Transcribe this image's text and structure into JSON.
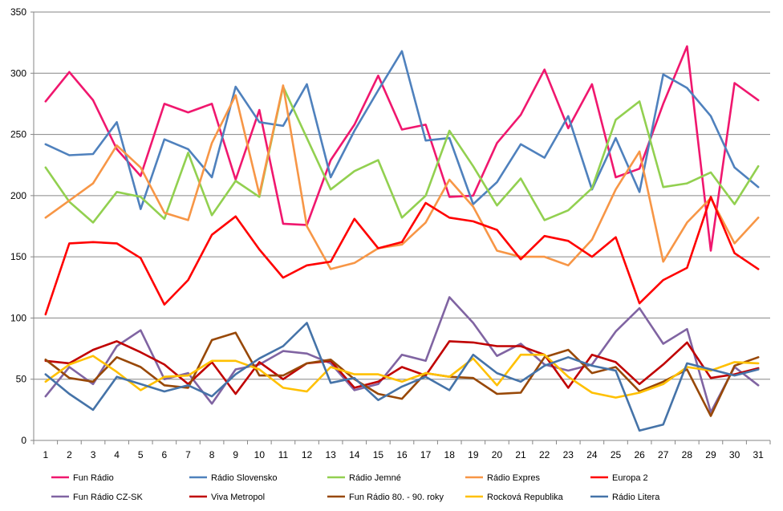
{
  "chart_data": {
    "type": "line",
    "title": "",
    "xlabel": "",
    "ylabel": "",
    "ylim": [
      0,
      350
    ],
    "yticks": [
      0,
      50,
      100,
      150,
      200,
      250,
      300,
      350
    ],
    "grid": "horizontal",
    "legend_position": "bottom",
    "x": [
      "1",
      "2",
      "3",
      "4",
      "5",
      "6",
      "7",
      "8",
      "9",
      "10",
      "11",
      "12",
      "13",
      "14",
      "15",
      "16",
      "17",
      "18",
      "19",
      "20",
      "21",
      "22",
      "23",
      "24",
      "25",
      "26",
      "27",
      "28",
      "29",
      "30",
      "31"
    ],
    "series": [
      {
        "name": "Fun Rádio",
        "color": "#f0176e",
        "values": [
          277,
          301,
          278,
          238,
          216,
          275,
          268,
          275,
          213,
          270,
          177,
          176,
          229,
          258,
          298,
          254,
          258,
          199,
          200,
          243,
          266,
          303,
          255,
          291,
          215,
          222,
          275,
          322,
          155,
          292,
          278
        ]
      },
      {
        "name": "Rádio Slovensko",
        "color": "#4f81bd",
        "values": [
          242,
          233,
          234,
          260,
          189,
          246,
          238,
          215,
          289,
          260,
          257,
          291,
          215,
          253,
          286,
          318,
          245,
          247,
          193,
          211,
          242,
          231,
          265,
          205,
          247,
          203,
          299,
          288,
          265,
          223,
          207
        ]
      },
      {
        "name": "Rádio Jemné",
        "color": "#92d050",
        "values": [
          223,
          195,
          178,
          203,
          199,
          181,
          235,
          184,
          212,
          199,
          289,
          247,
          205,
          220,
          229,
          182,
          200,
          253,
          224,
          192,
          214,
          180,
          188,
          206,
          262,
          277,
          207,
          210,
          219,
          193,
          224
        ]
      },
      {
        "name": "Rádio Expres",
        "color": "#f79646",
        "values": [
          182,
          196,
          210,
          241,
          223,
          186,
          180,
          243,
          282,
          201,
          290,
          175,
          140,
          145,
          157,
          160,
          178,
          213,
          191,
          155,
          150,
          150,
          143,
          164,
          205,
          236,
          146,
          178,
          198,
          161,
          182
        ]
      },
      {
        "name": "Europa 2",
        "color": "#ff0000",
        "values": [
          103,
          161,
          162,
          161,
          149,
          111,
          131,
          168,
          183,
          156,
          133,
          143,
          146,
          181,
          157,
          162,
          194,
          182,
          179,
          172,
          148,
          167,
          163,
          150,
          166,
          112,
          131,
          141,
          199,
          153,
          140
        ]
      },
      {
        "name": "Fun Rádio CZ-SK",
        "color": "#8064a2",
        "values": [
          36,
          60,
          46,
          77,
          90,
          50,
          55,
          30,
          58,
          62,
          73,
          71,
          63,
          41,
          46,
          70,
          65,
          117,
          96,
          69,
          79,
          62,
          57,
          62,
          89,
          108,
          79,
          91,
          23,
          60,
          45
        ]
      },
      {
        "name": "Viva Metropol",
        "color": "#c00000",
        "values": [
          65,
          63,
          74,
          81,
          72,
          62,
          46,
          64,
          38,
          64,
          50,
          63,
          65,
          43,
          48,
          60,
          53,
          81,
          80,
          77,
          77,
          70,
          43,
          70,
          64,
          46,
          62,
          80,
          51,
          54,
          59
        ]
      },
      {
        "name": "Fun Rádio 80. - 90. roky",
        "color": "#984807",
        "values": [
          66,
          51,
          48,
          68,
          60,
          45,
          43,
          82,
          88,
          53,
          53,
          63,
          66,
          50,
          38,
          34,
          55,
          52,
          51,
          38,
          39,
          68,
          74,
          55,
          60,
          40,
          48,
          58,
          20,
          61,
          68
        ]
      },
      {
        "name": "Rocková Republika",
        "color": "#ffc000",
        "values": [
          48,
          62,
          69,
          56,
          41,
          52,
          53,
          65,
          65,
          58,
          43,
          40,
          60,
          54,
          54,
          48,
          55,
          52,
          67,
          45,
          70,
          70,
          52,
          39,
          35,
          39,
          46,
          60,
          57,
          64,
          63
        ]
      },
      {
        "name": "Rádio Litera",
        "color": "#4573a8",
        "values": [
          54,
          38,
          25,
          52,
          46,
          40,
          45,
          36,
          54,
          67,
          77,
          96,
          47,
          51,
          33,
          44,
          52,
          41,
          70,
          55,
          48,
          61,
          68,
          61,
          57,
          8,
          13,
          63,
          58,
          53,
          58
        ]
      }
    ]
  }
}
